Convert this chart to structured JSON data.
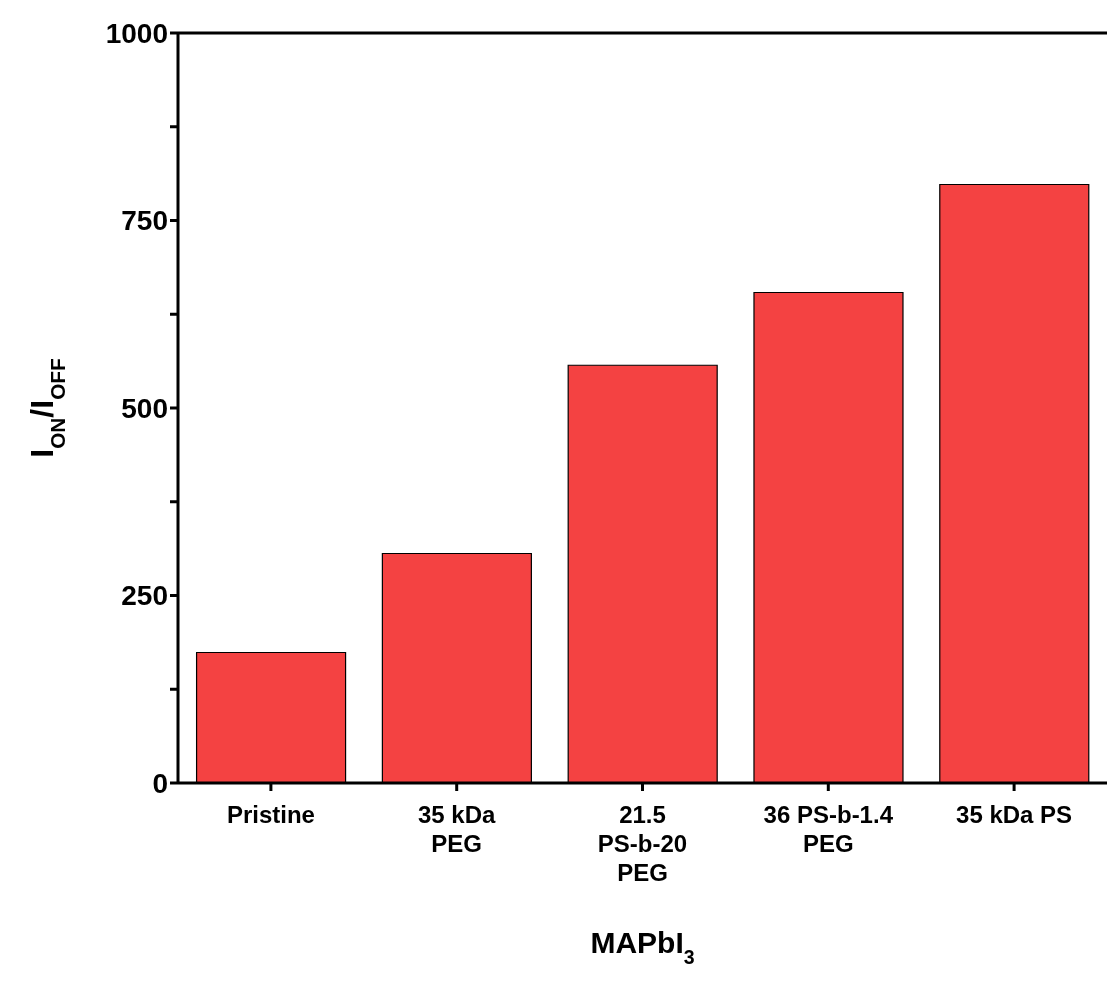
{
  "chart_data": {
    "type": "bar",
    "xlabel": "MAPbI$_{3}$",
    "ylabel": "I$_{ON}$/I$_{OFF}$",
    "categories": [
      "Pristine",
      "35 kDa\nPEG",
      "21.5\nPS-b-20\nPEG",
      "36 PS-b-1.4\nPEG",
      "35 kDa PS"
    ],
    "values": [
      174,
      306,
      557,
      654,
      798
    ],
    "color": "#f44242",
    "ylim": [
      0,
      1000
    ],
    "yticks": [
      0,
      {
        "value": 125,
        "label": null
      },
      250,
      {
        "value": 375,
        "label": null
      },
      500,
      {
        "value": 625,
        "label": null
      },
      750,
      {
        "value": 875,
        "label": null
      },
      1000
    ],
    "grid": false,
    "legend": false
  }
}
